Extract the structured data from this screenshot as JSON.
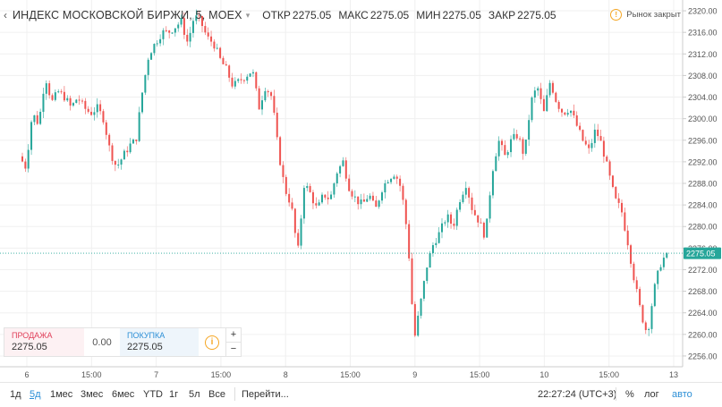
{
  "header": {
    "title": "ИНДЕКС МОСКОВСКОЙ БИРЖИ, 5, MOEX",
    "open_label": "ОТКР",
    "open": "2275.05",
    "high_label": "МАКС",
    "high": "2275.05",
    "low_label": "МИН",
    "low": "2275.05",
    "close_label": "ЗАКР",
    "close": "2275.05",
    "status": "Рынок закрыт"
  },
  "trade_panel": {
    "sell_label": "ПРОДАЖА",
    "sell_value": "2275.05",
    "spread": "0.00",
    "buy_label": "ПОКУПКА",
    "buy_value": "2275.05",
    "plus": "+",
    "minus": "−"
  },
  "ranges": [
    "1д",
    "5д",
    "1мес",
    "3мес",
    "6мес",
    "YTD",
    "1г",
    "5л",
    "Все"
  ],
  "active_range": "5д",
  "bottom": {
    "goto": "Перейти...",
    "time": "22:27:24 (UTC+3)",
    "percent": "%",
    "log": "лог",
    "auto": "авто"
  },
  "colors": {
    "up": "#26a69a",
    "down": "#ef5350",
    "last_price": "#26a69a",
    "grid": "#f0f0f0"
  },
  "chart_data": {
    "type": "candlestick",
    "title": "ИНДЕКС МОСКОВСКОЙ БИРЖИ, 5, MOEX",
    "ylim": [
      2254,
      2322
    ],
    "y_ticks": [
      2256.0,
      2260.0,
      2264.0,
      2268.0,
      2272.0,
      2276.0,
      2280.0,
      2284.0,
      2288.0,
      2292.0,
      2296.0,
      2300.0,
      2304.0,
      2308.0,
      2312.0,
      2316.0,
      2320.0
    ],
    "x_ticks": [
      "6",
      "15:00",
      "7",
      "15:00",
      "8",
      "15:00",
      "9",
      "15:00",
      "10",
      "15:00",
      "13"
    ],
    "last_price": 2275.05,
    "last_price_label": "2275.05",
    "price_path": [
      2293,
      2291,
      2301,
      2299,
      2308,
      2303,
      2305,
      2304,
      2302,
      2304,
      2302,
      2301,
      2302,
      2300,
      2294,
      2291,
      2293,
      2295,
      2296,
      2305,
      2312,
      2314,
      2316,
      2316,
      2317,
      2318,
      2314,
      2319,
      2318,
      2315,
      2314,
      2311,
      2309,
      2306,
      2307,
      2308,
      2309,
      2302,
      2306,
      2304,
      2294,
      2287,
      2284,
      2275,
      2288,
      2286,
      2283,
      2286,
      2285,
      2290,
      2292,
      2287,
      2285,
      2284,
      2286,
      2283,
      2287,
      2289,
      2290,
      2287,
      2278,
      2259,
      2266,
      2273,
      2277,
      2279,
      2282,
      2280,
      2285,
      2288,
      2283,
      2281,
      2278,
      2290,
      2296,
      2293,
      2296,
      2297,
      2293,
      2303,
      2306,
      2301,
      2307,
      2303,
      2301,
      2302,
      2299,
      2296,
      2294,
      2298,
      2295,
      2290,
      2285,
      2283,
      2277,
      2270,
      2264,
      2260,
      2268,
      2273,
      2275.05
    ]
  }
}
